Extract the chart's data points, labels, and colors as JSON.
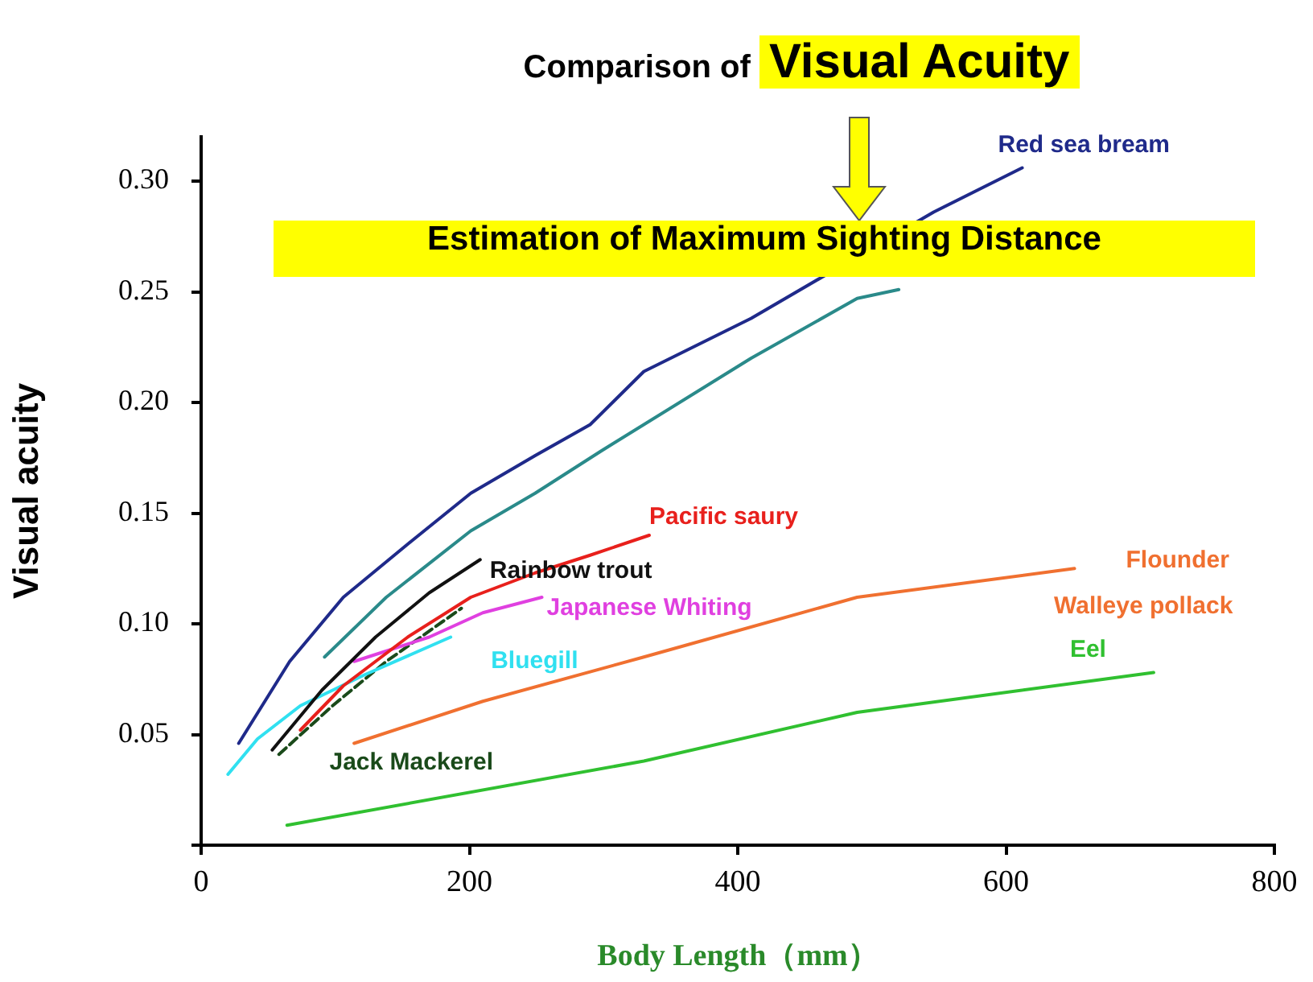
{
  "chart_data": {
    "type": "line",
    "title": "Comparison of Visual Acuity",
    "subtitle": "Estimation of Maximum Sighting Distance",
    "xlabel": "Body Length（mm）",
    "ylabel": "Visual acuity",
    "xlim": [
      0,
      800
    ],
    "xticks": [
      0,
      200,
      400,
      600,
      800
    ],
    "ylim": [
      0,
      0.32
    ],
    "yticks": [
      {
        "value": 0,
        "label": null
      },
      0.05,
      {
        "value": 0.1,
        "label": "0.10"
      },
      0.15,
      {
        "value": 0.2,
        "label": "0.20"
      },
      0.25,
      {
        "value": 0.3,
        "label": "0.30"
      }
    ],
    "grid": false,
    "legend": false,
    "marker": "none",
    "series": [
      {
        "name": "Red sea bream",
        "color": "#1f2a8a",
        "x": [
          28,
          66,
          106,
          154,
          201,
          249,
          290,
          330,
          410,
          546,
          612
        ],
        "values": [
          0.046,
          0.083,
          0.112,
          0.136,
          0.159,
          0.176,
          0.19,
          0.214,
          0.238,
          0.286,
          0.306
        ]
      },
      {
        "color": "#2a8a8a",
        "x": [
          92,
          138,
          201,
          249,
          298,
          410,
          489,
          520
        ],
        "values": [
          0.085,
          0.112,
          0.142,
          0.159,
          0.178,
          0.22,
          0.247,
          0.251
        ]
      },
      {
        "name": "Pacific saury",
        "color": "#e8201c",
        "x": [
          74,
          106,
          154,
          201,
          249,
          290,
          334
        ],
        "values": [
          0.052,
          0.072,
          0.094,
          0.112,
          0.123,
          0.131,
          0.14
        ]
      },
      {
        "name": "Rainbow trout",
        "color": "#111111",
        "x": [
          53,
          90,
          130,
          170,
          208
        ],
        "values": [
          0.043,
          0.07,
          0.094,
          0.114,
          0.129
        ]
      },
      {
        "name": "Japanese Whiting",
        "color": "#e040e0",
        "x": [
          114,
          170,
          210,
          254
        ],
        "values": [
          0.083,
          0.094,
          0.105,
          0.112
        ]
      },
      {
        "name": "Bluegill",
        "color": "#30e0f0",
        "x": [
          20,
          42,
          74,
          122,
          186
        ],
        "values": [
          0.032,
          0.048,
          0.063,
          0.077,
          0.094
        ]
      },
      {
        "name": "Jack Mackerel",
        "color": "#1a4a1a",
        "line_style": "dashed",
        "x": [
          58,
          98,
          138,
          194
        ],
        "values": [
          0.041,
          0.063,
          0.083,
          0.107
        ]
      },
      {
        "name": "Flounder",
        "color": "#f07030",
        "x": [
          114,
          210,
          330,
          489,
          651
        ],
        "values": [
          0.046,
          0.065,
          0.085,
          0.112,
          0.125
        ]
      },
      {
        "name": "Eel",
        "color": "#30c030",
        "x": [
          64,
          330,
          489,
          710
        ],
        "values": [
          0.009,
          0.038,
          0.06,
          0.078
        ]
      }
    ],
    "annotations": [
      "Walleye pollack"
    ]
  }
}
